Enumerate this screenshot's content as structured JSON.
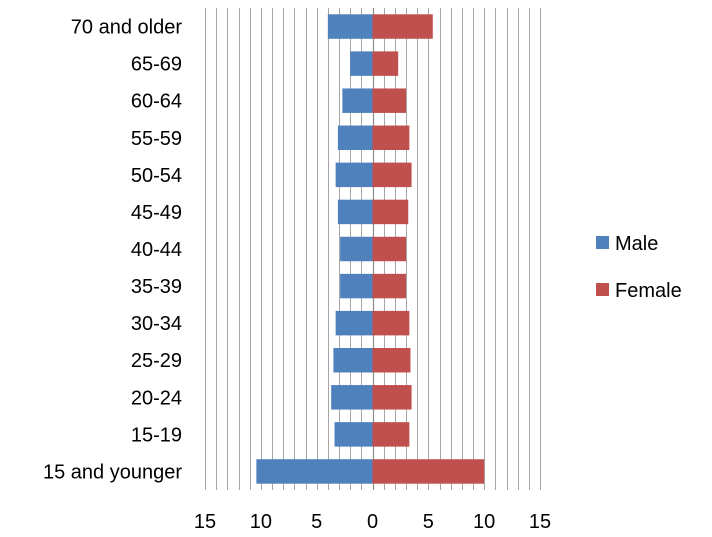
{
  "chart_data": {
    "type": "bar",
    "orientation": "horizontal",
    "layout": "population-pyramid",
    "categories": [
      "70 and older",
      "65-69",
      "60-64",
      "55-59",
      "50-54",
      "45-49",
      "40-44",
      "35-39",
      "30-34",
      "25-29",
      "20-24",
      "15-19",
      "15 and younger"
    ],
    "series": [
      {
        "name": "Male",
        "color": "#4F81BD",
        "values": [
          4.0,
          2.0,
          2.7,
          3.1,
          3.3,
          3.1,
          2.9,
          2.9,
          3.3,
          3.5,
          3.7,
          3.4,
          10.4
        ]
      },
      {
        "name": "Female",
        "color": "#C0504D",
        "values": [
          5.4,
          2.3,
          3.0,
          3.3,
          3.5,
          3.2,
          3.0,
          3.0,
          3.3,
          3.4,
          3.5,
          3.3,
          10.0
        ]
      }
    ],
    "male_direction": "left",
    "x_ticks": [
      15,
      10,
      5,
      0,
      5,
      10,
      15
    ],
    "xlim": [
      -15,
      15
    ],
    "gridlines": {
      "vertical": true,
      "minor_step": 1
    },
    "legend": {
      "position": "right",
      "entries": [
        "Male",
        "Female"
      ]
    },
    "title": "",
    "xlabel": "",
    "ylabel": ""
  }
}
